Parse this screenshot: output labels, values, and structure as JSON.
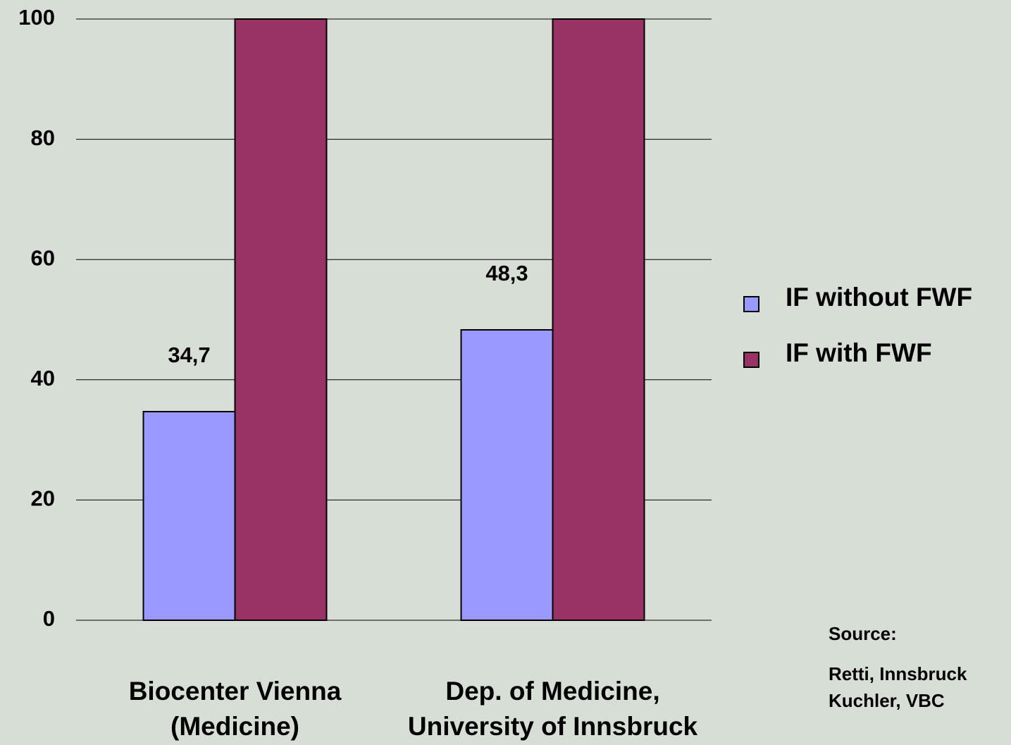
{
  "chart_data": {
    "type": "bar",
    "categories": [
      [
        "Biocenter Vienna",
        "(Medicine)"
      ],
      [
        "Dep. of  Medicine,",
        "University of Innsbruck"
      ]
    ],
    "series": [
      {
        "name": "IF without FWF",
        "color": "#9999ff",
        "values": [
          34.7,
          48.3
        ],
        "value_labels": [
          "34,7",
          "48,3"
        ]
      },
      {
        "name": "IF with FWF",
        "color": "#993366",
        "values": [
          100,
          100
        ]
      }
    ],
    "ylim": [
      0,
      100
    ],
    "yticks": [
      0,
      20,
      40,
      60,
      80,
      100
    ],
    "grid": true,
    "legend": "right",
    "annotations": [
      "Source:",
      "Retti, Innsbruck",
      "Kuchler, VBC"
    ]
  }
}
